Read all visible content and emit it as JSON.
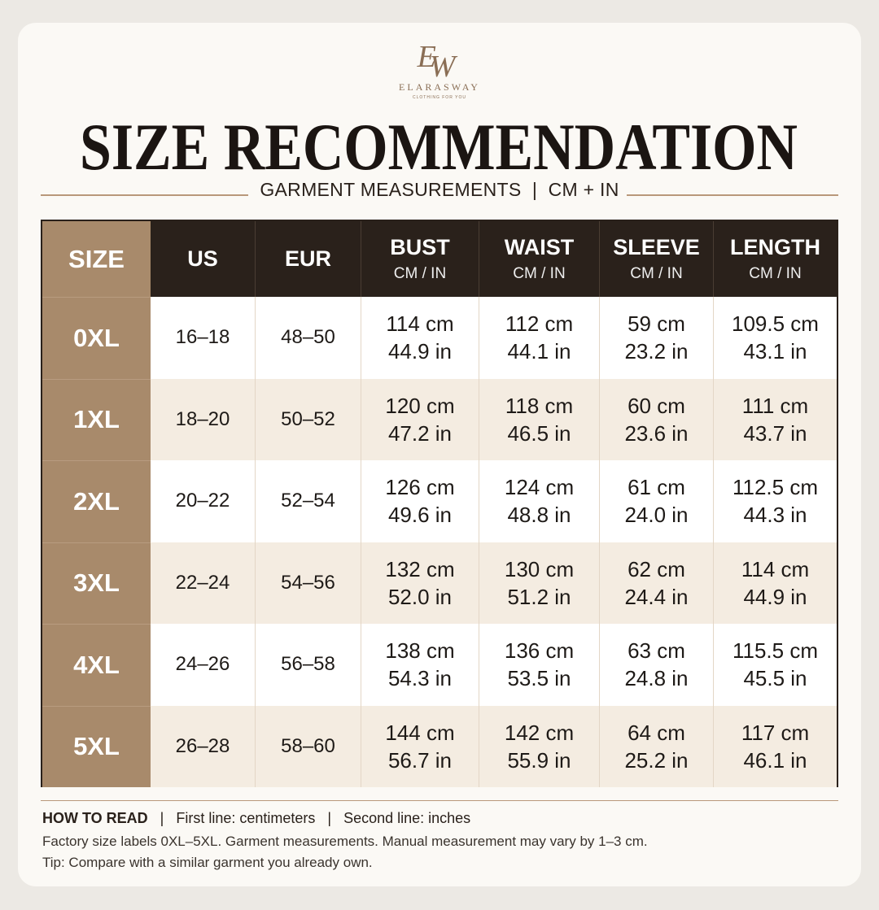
{
  "logo": {
    "monogram": [
      "E",
      "W"
    ],
    "brand": "ELARASWAY",
    "tagline": "CLOTHING FOR YOU"
  },
  "header": {
    "title": "SIZE RECOMMENDATION",
    "subtitle": "GARMENT MEASUREMENTS  |  CM + IN"
  },
  "table": {
    "columns": [
      {
        "title": "SIZE"
      },
      {
        "title": "US"
      },
      {
        "title": "EUR"
      },
      {
        "title": "BUST",
        "unit": "CM / IN"
      },
      {
        "title": "WAIST",
        "unit": "CM / IN"
      },
      {
        "title": "SLEEVE",
        "unit": "CM / IN"
      },
      {
        "title": "LENGTH",
        "unit": "CM / IN"
      }
    ],
    "rows": [
      {
        "size": "0XL",
        "us": "16–18",
        "eur": "48–50",
        "measurements": [
          [
            "114 cm",
            "44.9 in"
          ],
          [
            "112 cm",
            "44.1 in"
          ],
          [
            "59 cm",
            "23.2 in"
          ],
          [
            "109.5 cm",
            "43.1 in"
          ]
        ]
      },
      {
        "size": "1XL",
        "us": "18–20",
        "eur": "50–52",
        "measurements": [
          [
            "120 cm",
            "47.2 in"
          ],
          [
            "118 cm",
            "46.5 in"
          ],
          [
            "60 cm",
            "23.6 in"
          ],
          [
            "111 cm",
            "43.7 in"
          ]
        ]
      },
      {
        "size": "2XL",
        "us": "20–22",
        "eur": "52–54",
        "measurements": [
          [
            "126 cm",
            "49.6 in"
          ],
          [
            "124 cm",
            "48.8 in"
          ],
          [
            "61 cm",
            "24.0 in"
          ],
          [
            "112.5 cm",
            "44.3 in"
          ]
        ]
      },
      {
        "size": "3XL",
        "us": "22–24",
        "eur": "54–56",
        "measurements": [
          [
            "132 cm",
            "52.0 in"
          ],
          [
            "130 cm",
            "51.2 in"
          ],
          [
            "62 cm",
            "24.4 in"
          ],
          [
            "114 cm",
            "44.9 in"
          ]
        ]
      },
      {
        "size": "4XL",
        "us": "24–26",
        "eur": "56–58",
        "measurements": [
          [
            "138 cm",
            "54.3 in"
          ],
          [
            "136 cm",
            "53.5 in"
          ],
          [
            "63 cm",
            "24.8 in"
          ],
          [
            "115.5 cm",
            "45.5 in"
          ]
        ]
      },
      {
        "size": "5XL",
        "us": "26–28",
        "eur": "58–60",
        "measurements": [
          [
            "144 cm",
            "56.7 in"
          ],
          [
            "142 cm",
            "55.9 in"
          ],
          [
            "64 cm",
            "25.2 in"
          ],
          [
            "117 cm",
            "46.1 in"
          ]
        ]
      }
    ]
  },
  "footer": {
    "label": "HOW TO READ",
    "legend": "   |   First line: centimeters   |   Second line: inches",
    "note": "Factory size labels 0XL–5XL. Garment measurements. Manual measurement may vary by 1–3 cm.",
    "tip": "Tip: Compare with a similar garment you already own."
  }
}
